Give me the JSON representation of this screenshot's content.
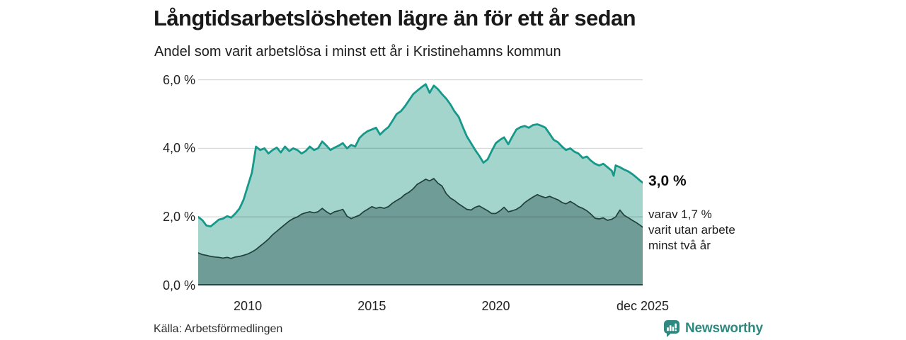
{
  "header": {
    "title": "Långtidsarbetslösheten lägre än för ett år sedan",
    "subtitle": "Andel som varit arbetslösa i minst ett år i Kristinehamns kommun"
  },
  "chart_data": {
    "type": "area",
    "title": "Långtidsarbetslösheten lägre än för ett år sedan",
    "subtitle": "Andel som varit arbetslösa i minst ett år i Kristinehamns kommun",
    "unit": "%",
    "xlim": [
      2008,
      2025.92
    ],
    "ylim": [
      0,
      6.26
    ],
    "grid": "horizontal",
    "yticks": [
      {
        "v": 0,
        "label": "0,0 %"
      },
      {
        "v": 2,
        "label": "2,0 %"
      },
      {
        "v": 4,
        "label": "4,0 %"
      },
      {
        "v": 6,
        "label": "6,0 %"
      }
    ],
    "xticks": [
      {
        "v": 2010,
        "label": "2010"
      },
      {
        "v": 2015,
        "label": "2015"
      },
      {
        "v": 2020,
        "label": "2020"
      },
      {
        "v": 2025.92,
        "label": "dec 2025"
      }
    ],
    "series": [
      {
        "name": "Arbetslösa minst ett år",
        "line_color": "#16988a",
        "fill_color": "#a3d5cd",
        "line_width": 2.8,
        "end_value": 3.0,
        "points": [
          [
            2008.0,
            2.0
          ],
          [
            2008.17,
            1.9
          ],
          [
            2008.33,
            1.75
          ],
          [
            2008.5,
            1.72
          ],
          [
            2008.67,
            1.82
          ],
          [
            2008.83,
            1.92
          ],
          [
            2009.0,
            1.95
          ],
          [
            2009.17,
            2.02
          ],
          [
            2009.33,
            1.98
          ],
          [
            2009.5,
            2.1
          ],
          [
            2009.67,
            2.25
          ],
          [
            2009.83,
            2.5
          ],
          [
            2010.0,
            2.9
          ],
          [
            2010.17,
            3.3
          ],
          [
            2010.33,
            4.05
          ],
          [
            2010.5,
            3.95
          ],
          [
            2010.67,
            4.0
          ],
          [
            2010.83,
            3.85
          ],
          [
            2011.0,
            3.95
          ],
          [
            2011.17,
            4.02
          ],
          [
            2011.33,
            3.88
          ],
          [
            2011.5,
            4.05
          ],
          [
            2011.67,
            3.92
          ],
          [
            2011.83,
            4.0
          ],
          [
            2012.0,
            3.95
          ],
          [
            2012.17,
            3.85
          ],
          [
            2012.33,
            3.92
          ],
          [
            2012.5,
            4.05
          ],
          [
            2012.67,
            3.95
          ],
          [
            2012.83,
            4.0
          ],
          [
            2013.0,
            4.2
          ],
          [
            2013.17,
            4.08
          ],
          [
            2013.33,
            3.95
          ],
          [
            2013.5,
            4.02
          ],
          [
            2013.67,
            4.08
          ],
          [
            2013.83,
            4.15
          ],
          [
            2014.0,
            4.0
          ],
          [
            2014.17,
            4.1
          ],
          [
            2014.33,
            4.05
          ],
          [
            2014.5,
            4.3
          ],
          [
            2014.67,
            4.42
          ],
          [
            2014.83,
            4.5
          ],
          [
            2015.0,
            4.55
          ],
          [
            2015.17,
            4.6
          ],
          [
            2015.33,
            4.4
          ],
          [
            2015.5,
            4.52
          ],
          [
            2015.67,
            4.62
          ],
          [
            2015.83,
            4.8
          ],
          [
            2016.0,
            5.0
          ],
          [
            2016.17,
            5.08
          ],
          [
            2016.33,
            5.22
          ],
          [
            2016.5,
            5.4
          ],
          [
            2016.67,
            5.58
          ],
          [
            2016.83,
            5.68
          ],
          [
            2017.0,
            5.78
          ],
          [
            2017.17,
            5.87
          ],
          [
            2017.33,
            5.62
          ],
          [
            2017.5,
            5.83
          ],
          [
            2017.67,
            5.72
          ],
          [
            2017.83,
            5.58
          ],
          [
            2018.0,
            5.45
          ],
          [
            2018.17,
            5.28
          ],
          [
            2018.33,
            5.08
          ],
          [
            2018.5,
            4.92
          ],
          [
            2018.67,
            4.62
          ],
          [
            2018.83,
            4.35
          ],
          [
            2019.0,
            4.15
          ],
          [
            2019.17,
            3.95
          ],
          [
            2019.33,
            3.78
          ],
          [
            2019.5,
            3.58
          ],
          [
            2019.67,
            3.68
          ],
          [
            2019.83,
            3.92
          ],
          [
            2020.0,
            4.15
          ],
          [
            2020.17,
            4.25
          ],
          [
            2020.33,
            4.32
          ],
          [
            2020.5,
            4.12
          ],
          [
            2020.67,
            4.35
          ],
          [
            2020.83,
            4.55
          ],
          [
            2021.0,
            4.62
          ],
          [
            2021.17,
            4.65
          ],
          [
            2021.33,
            4.6
          ],
          [
            2021.5,
            4.68
          ],
          [
            2021.67,
            4.7
          ],
          [
            2021.83,
            4.66
          ],
          [
            2022.0,
            4.6
          ],
          [
            2022.17,
            4.42
          ],
          [
            2022.33,
            4.25
          ],
          [
            2022.5,
            4.18
          ],
          [
            2022.67,
            4.05
          ],
          [
            2022.83,
            3.95
          ],
          [
            2023.0,
            4.0
          ],
          [
            2023.17,
            3.9
          ],
          [
            2023.33,
            3.85
          ],
          [
            2023.5,
            3.72
          ],
          [
            2023.67,
            3.76
          ],
          [
            2023.83,
            3.64
          ],
          [
            2024.0,
            3.55
          ],
          [
            2024.17,
            3.5
          ],
          [
            2024.33,
            3.55
          ],
          [
            2024.5,
            3.45
          ],
          [
            2024.67,
            3.35
          ],
          [
            2024.75,
            3.2
          ],
          [
            2024.83,
            3.5
          ],
          [
            2025.0,
            3.45
          ],
          [
            2025.17,
            3.38
          ],
          [
            2025.33,
            3.33
          ],
          [
            2025.5,
            3.25
          ],
          [
            2025.67,
            3.15
          ],
          [
            2025.83,
            3.05
          ],
          [
            2025.92,
            3.0
          ]
        ]
      },
      {
        "name": "Arbetslösa minst två år",
        "line_color": "#21403c",
        "fill_color": "#6f9c96",
        "line_width": 1.7,
        "end_value": 1.7,
        "points": [
          [
            2008.0,
            0.95
          ],
          [
            2008.17,
            0.9
          ],
          [
            2008.33,
            0.88
          ],
          [
            2008.5,
            0.85
          ],
          [
            2008.67,
            0.83
          ],
          [
            2008.83,
            0.82
          ],
          [
            2009.0,
            0.8
          ],
          [
            2009.17,
            0.82
          ],
          [
            2009.33,
            0.79
          ],
          [
            2009.5,
            0.83
          ],
          [
            2009.67,
            0.85
          ],
          [
            2009.83,
            0.88
          ],
          [
            2010.0,
            0.92
          ],
          [
            2010.17,
            0.98
          ],
          [
            2010.33,
            1.05
          ],
          [
            2010.5,
            1.15
          ],
          [
            2010.67,
            1.25
          ],
          [
            2010.83,
            1.35
          ],
          [
            2011.0,
            1.48
          ],
          [
            2011.17,
            1.58
          ],
          [
            2011.33,
            1.68
          ],
          [
            2011.5,
            1.78
          ],
          [
            2011.67,
            1.88
          ],
          [
            2011.83,
            1.95
          ],
          [
            2012.0,
            2.0
          ],
          [
            2012.17,
            2.08
          ],
          [
            2012.33,
            2.12
          ],
          [
            2012.5,
            2.15
          ],
          [
            2012.67,
            2.12
          ],
          [
            2012.83,
            2.15
          ],
          [
            2013.0,
            2.25
          ],
          [
            2013.17,
            2.15
          ],
          [
            2013.33,
            2.08
          ],
          [
            2013.5,
            2.15
          ],
          [
            2013.67,
            2.18
          ],
          [
            2013.83,
            2.22
          ],
          [
            2014.0,
            2.02
          ],
          [
            2014.17,
            1.95
          ],
          [
            2014.33,
            2.0
          ],
          [
            2014.5,
            2.05
          ],
          [
            2014.67,
            2.15
          ],
          [
            2014.83,
            2.22
          ],
          [
            2015.0,
            2.3
          ],
          [
            2015.17,
            2.25
          ],
          [
            2015.33,
            2.28
          ],
          [
            2015.5,
            2.25
          ],
          [
            2015.67,
            2.3
          ],
          [
            2015.83,
            2.4
          ],
          [
            2016.0,
            2.48
          ],
          [
            2016.17,
            2.55
          ],
          [
            2016.33,
            2.65
          ],
          [
            2016.5,
            2.72
          ],
          [
            2016.67,
            2.82
          ],
          [
            2016.83,
            2.95
          ],
          [
            2017.0,
            3.02
          ],
          [
            2017.17,
            3.1
          ],
          [
            2017.33,
            3.05
          ],
          [
            2017.5,
            3.12
          ],
          [
            2017.67,
            2.98
          ],
          [
            2017.83,
            2.9
          ],
          [
            2018.0,
            2.68
          ],
          [
            2018.17,
            2.55
          ],
          [
            2018.33,
            2.48
          ],
          [
            2018.5,
            2.38
          ],
          [
            2018.67,
            2.3
          ],
          [
            2018.83,
            2.22
          ],
          [
            2019.0,
            2.2
          ],
          [
            2019.17,
            2.28
          ],
          [
            2019.33,
            2.32
          ],
          [
            2019.5,
            2.25
          ],
          [
            2019.67,
            2.18
          ],
          [
            2019.83,
            2.1
          ],
          [
            2020.0,
            2.1
          ],
          [
            2020.17,
            2.18
          ],
          [
            2020.33,
            2.28
          ],
          [
            2020.5,
            2.15
          ],
          [
            2020.67,
            2.18
          ],
          [
            2020.83,
            2.22
          ],
          [
            2021.0,
            2.3
          ],
          [
            2021.17,
            2.42
          ],
          [
            2021.33,
            2.5
          ],
          [
            2021.5,
            2.58
          ],
          [
            2021.67,
            2.65
          ],
          [
            2021.83,
            2.6
          ],
          [
            2022.0,
            2.56
          ],
          [
            2022.17,
            2.6
          ],
          [
            2022.33,
            2.55
          ],
          [
            2022.5,
            2.5
          ],
          [
            2022.67,
            2.42
          ],
          [
            2022.83,
            2.38
          ],
          [
            2023.0,
            2.45
          ],
          [
            2023.17,
            2.38
          ],
          [
            2023.33,
            2.3
          ],
          [
            2023.5,
            2.25
          ],
          [
            2023.67,
            2.18
          ],
          [
            2023.83,
            2.08
          ],
          [
            2024.0,
            1.96
          ],
          [
            2024.17,
            1.94
          ],
          [
            2024.33,
            1.97
          ],
          [
            2024.5,
            1.9
          ],
          [
            2024.67,
            1.93
          ],
          [
            2024.83,
            2.0
          ],
          [
            2025.0,
            2.2
          ],
          [
            2025.17,
            2.05
          ],
          [
            2025.33,
            1.98
          ],
          [
            2025.5,
            1.9
          ],
          [
            2025.67,
            1.83
          ],
          [
            2025.83,
            1.75
          ],
          [
            2025.92,
            1.7
          ]
        ]
      }
    ],
    "annotations": {
      "end_value": "3,0 %",
      "note": "varav 1,7 %\nvarit utan arbete\nminst två år"
    },
    "colors": {
      "grid": "rgba(0,0,0,0.15)",
      "baseline": "#2c4440",
      "accent_teal": "#16988a"
    }
  },
  "footer": {
    "source": "Källa: Arbetsförmedlingen",
    "brand": "Newsworthy"
  }
}
